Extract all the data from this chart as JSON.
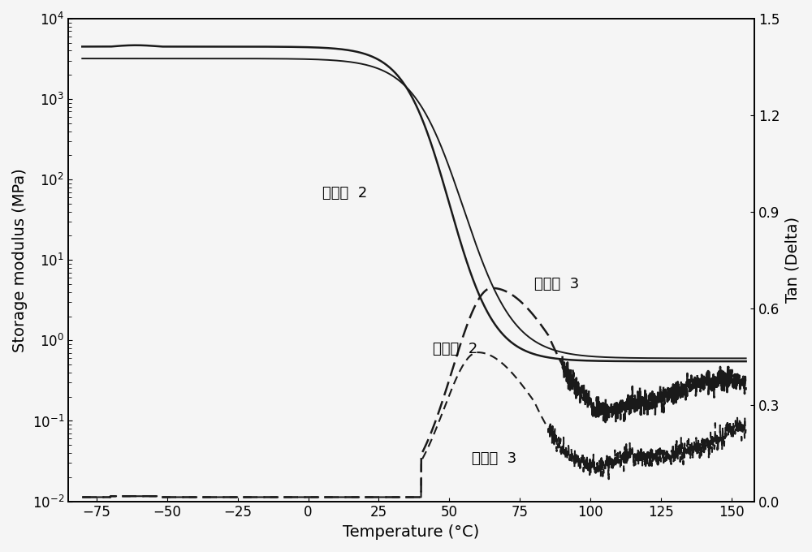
{
  "title": "",
  "xlabel": "Temperature (°C)",
  "ylabel_left": "Storage modulus (MPa)",
  "ylabel_right": "Tan (Delta)",
  "xlim": [
    -85,
    158
  ],
  "ylim_right": [
    0.0,
    1.5
  ],
  "xticks": [
    -75,
    -50,
    -25,
    0,
    25,
    50,
    75,
    100,
    125,
    150
  ],
  "yticks_right": [
    0.0,
    0.3,
    0.6,
    0.9,
    1.2,
    1.5
  ],
  "label_E2_storage": "实施例  2",
  "label_E3_storage": "实施例  3",
  "label_E2_tan": "实施例  2",
  "label_E3_tan": "实施例  3",
  "color_solid": "#1a1a1a",
  "color_dashed": "#1a1a1a",
  "background_color": "#f5f5f5",
  "linewidth_solid_E2": 1.8,
  "linewidth_solid_E3": 1.4,
  "linewidth_dashed_E2": 1.8,
  "linewidth_dashed_E3": 1.5,
  "fontsize_label": 14,
  "fontsize_tick": 12,
  "fontsize_annotation": 13
}
